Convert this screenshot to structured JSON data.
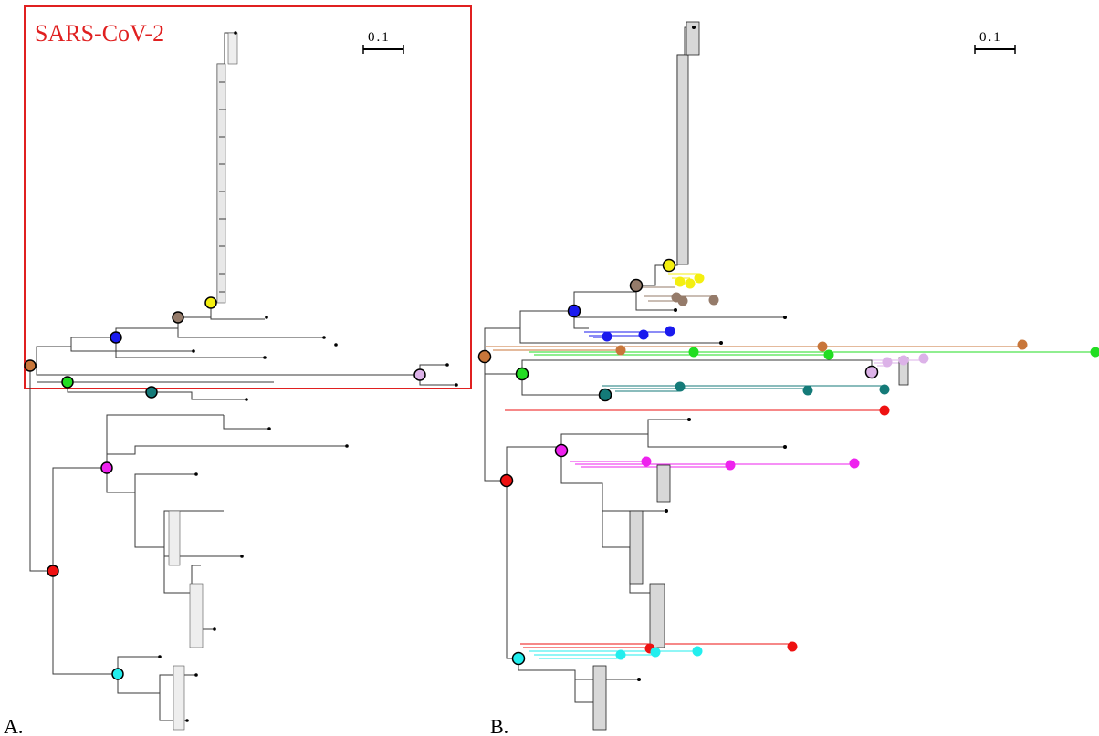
{
  "highlight_box": {
    "title": "SARS-CoV-2",
    "color": "#e02020"
  },
  "panel_a": {
    "label": "A.",
    "scale": "0.1"
  },
  "panel_b": {
    "label": "B.",
    "scale": "0.1"
  },
  "node_colors": {
    "red": "#ee1111",
    "orange": "#c8763a",
    "green": "#22dd22",
    "teal": "#147a78",
    "blue": "#1a1aee",
    "brown": "#957b6a",
    "yellow": "#f4ef10",
    "lavender": "#dcb2e8",
    "magenta": "#ee22ee",
    "cyan": "#22eeee"
  }
}
